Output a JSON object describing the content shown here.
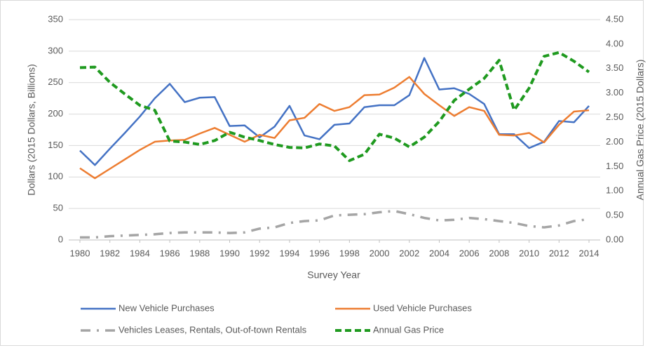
{
  "chart_data": {
    "type": "line",
    "x_label": "Survey Year",
    "y_label": "Dollars (2015 Dollars, Billions)",
    "y2_label": "Annual Gas Price (2015 Dollars)",
    "x": [
      1980,
      1981,
      1982,
      1983,
      1984,
      1985,
      1986,
      1987,
      1988,
      1989,
      1990,
      1991,
      1992,
      1993,
      1994,
      1995,
      1996,
      1997,
      1998,
      1999,
      2000,
      2001,
      2002,
      2003,
      2004,
      2005,
      2006,
      2007,
      2008,
      2009,
      2010,
      2011,
      2012,
      2013,
      2014
    ],
    "xlim": [
      1980,
      2014
    ],
    "xticks": [
      1980,
      1982,
      1984,
      1986,
      1988,
      1990,
      1992,
      1994,
      1996,
      1998,
      2000,
      2002,
      2004,
      2006,
      2008,
      2010,
      2012,
      2014
    ],
    "ylim": [
      0,
      350
    ],
    "yticks": [
      0,
      50,
      100,
      150,
      200,
      250,
      300,
      350
    ],
    "y2lim": [
      0,
      4.5
    ],
    "y2ticks": [
      {
        "value": 0,
        "label": "0.00"
      },
      {
        "value": 0.5,
        "label": "0.50"
      },
      {
        "value": 1,
        "label": "1.00"
      },
      {
        "value": 1.5,
        "label": "1.50"
      },
      {
        "value": 2,
        "label": "2.00"
      },
      {
        "value": 2.5,
        "label": "2.50"
      },
      {
        "value": 3,
        "label": "3.00"
      },
      {
        "value": 3.5,
        "label": "3.50"
      },
      {
        "value": 4,
        "label": "4.00"
      },
      {
        "value": 4.5,
        "label": "4.50"
      }
    ],
    "grid": true,
    "legend": "bottom",
    "series": [
      {
        "name": "New Vehicle Purchases",
        "color": "#4472c4",
        "dash": "solid",
        "values": [
          142,
          119,
          145,
          170,
          196,
          225,
          248,
          219,
          226,
          227,
          181,
          182,
          163,
          180,
          213,
          166,
          160,
          183,
          185,
          211,
          214,
          214,
          230,
          289,
          239,
          241,
          232,
          216,
          168,
          168,
          146,
          156,
          189,
          187,
          213
        ]
      },
      {
        "name": "Used Vehicle Purchases",
        "color": "#ed7d31",
        "dash": "solid",
        "values": [
          114,
          98,
          113,
          128,
          143,
          156,
          158,
          159,
          169,
          178,
          167,
          156,
          167,
          162,
          190,
          194,
          216,
          205,
          211,
          230,
          231,
          242,
          259,
          232,
          214,
          197,
          211,
          205,
          167,
          166,
          170,
          155,
          183,
          204,
          206
        ]
      },
      {
        "name": "Vehicles Leases, Rentals, Out-of-town Rentals",
        "color": "#a5a5a5",
        "dash": "dash-dot",
        "values": [
          4,
          4,
          6,
          7,
          8,
          9,
          11,
          12,
          12,
          12,
          11,
          12,
          18,
          20,
          27,
          30,
          31,
          39,
          40,
          41,
          44,
          46,
          41,
          35,
          31,
          32,
          35,
          33,
          30,
          27,
          22,
          20,
          23,
          30,
          33
        ]
      },
      {
        "name": "Annual Gas Price",
        "color": "#1f9a1f",
        "dash": "dash",
        "axis": "y2",
        "values": [
          3.52,
          3.53,
          3.22,
          2.98,
          2.75,
          2.65,
          2.02,
          2.0,
          1.95,
          2.03,
          2.2,
          2.1,
          2.03,
          1.95,
          1.89,
          1.88,
          1.96,
          1.92,
          1.62,
          1.75,
          2.16,
          2.08,
          1.9,
          2.1,
          2.42,
          2.85,
          3.08,
          3.3,
          3.67,
          2.65,
          3.1,
          3.75,
          3.83,
          3.65,
          3.43
        ]
      }
    ]
  }
}
